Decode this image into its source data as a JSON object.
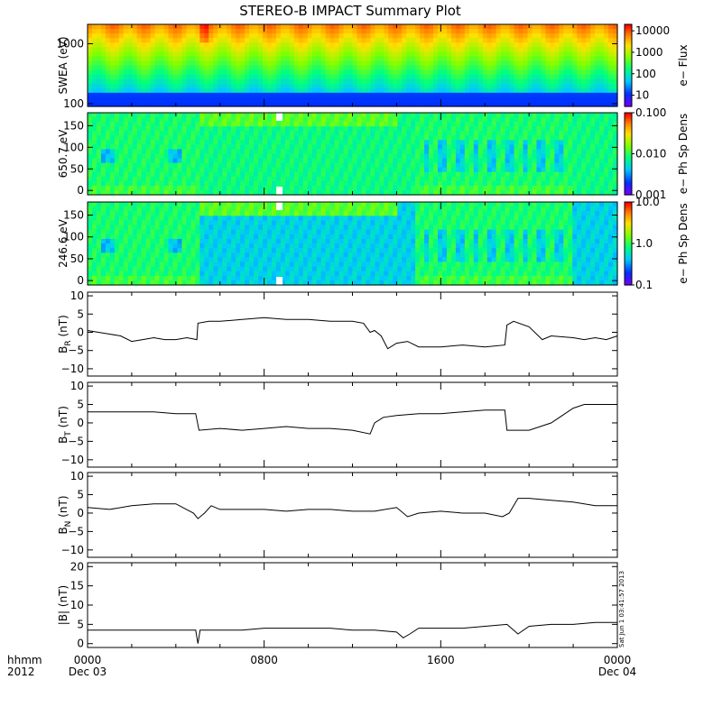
{
  "title": "STEREO-B IMPACT Summary Plot",
  "timestamp": "Sat Jun  1 03:41:57 2013",
  "x_axis": {
    "row1_label": "hhmm",
    "row2_label": "2012",
    "ticks": [
      {
        "hour": 0,
        "label": "0000",
        "sub": "Dec 03"
      },
      {
        "hour": 8,
        "label": "0800",
        "sub": ""
      },
      {
        "hour": 16,
        "label": "1600",
        "sub": ""
      },
      {
        "hour": 24,
        "label": "0000",
        "sub": "Dec 04"
      }
    ]
  },
  "colors": {
    "trace": "#000000",
    "colorbar": [
      "#7000ff",
      "#0030ff",
      "#00c8ff",
      "#00ff80",
      "#80ff00",
      "#ffe000",
      "#ff8000",
      "#ff0000"
    ]
  },
  "chart_data": [
    {
      "type": "heatmap",
      "panel": "swea",
      "ylabel": "SWEA (eV)",
      "yscale": "log",
      "ylim": [
        90,
        2100
      ],
      "yticks": [
        100,
        1000
      ],
      "ytick_labels": [
        "100",
        "1000"
      ],
      "colorbar": {
        "label": "e− Flux",
        "scale": "log",
        "range": [
          3,
          20000
        ],
        "ticks": [
          10,
          100,
          1000,
          10000
        ],
        "tick_labels": [
          "10",
          "100",
          "1000",
          "10000"
        ]
      }
    },
    {
      "type": "heatmap",
      "panel": "pad650",
      "ylabel": "650.7 eV",
      "yscale": "linear",
      "ylim": [
        -10,
        180
      ],
      "yticks": [
        0,
        50,
        100,
        150
      ],
      "ytick_labels": [
        "0",
        "50",
        "100",
        "150"
      ],
      "colorbar": {
        "label": "e− Ph Sp Dens",
        "scale": "log",
        "range": [
          0.001,
          0.1
        ],
        "ticks": [
          0.001,
          0.01,
          0.1
        ],
        "tick_labels": [
          "0.001",
          "0.010",
          "0.100"
        ]
      }
    },
    {
      "type": "heatmap",
      "panel": "pad246",
      "ylabel": "246.6 eV",
      "yscale": "linear",
      "ylim": [
        -10,
        180
      ],
      "yticks": [
        0,
        50,
        100,
        150
      ],
      "ytick_labels": [
        "0",
        "50",
        "100",
        "150"
      ],
      "colorbar": {
        "label": "e− Ph Sp Dens",
        "scale": "log",
        "range": [
          0.1,
          10
        ],
        "ticks": [
          0.1,
          1,
          10
        ],
        "tick_labels": [
          "0.1",
          "1.0",
          "10.0"
        ]
      }
    },
    {
      "type": "line",
      "panel": "br",
      "ylabel": "B_R (nT)",
      "ylim": [
        -12,
        11
      ],
      "yticks": [
        -10,
        -5,
        0,
        5,
        10
      ],
      "ytick_labels": [
        "−10",
        "−5",
        "0",
        "5",
        "10"
      ],
      "x": [
        0,
        0.5,
        1,
        1.5,
        2,
        2.5,
        3,
        3.5,
        4,
        4.5,
        4.95,
        5.0,
        5.5,
        6,
        7,
        8,
        9,
        10,
        11,
        12,
        12.5,
        12.8,
        13.0,
        13.3,
        13.6,
        14,
        14.5,
        15,
        15.5,
        16,
        17,
        18,
        18.9,
        19.0,
        19.3,
        20,
        20.6,
        21,
        22,
        22.5,
        23,
        23.5,
        24
      ],
      "y": [
        0.5,
        0,
        -0.5,
        -1,
        -2.5,
        -2,
        -1.5,
        -2,
        -2,
        -1.5,
        -2,
        2.5,
        3,
        3,
        3.5,
        4,
        3.5,
        3.5,
        3,
        3,
        2.5,
        0,
        0.5,
        -1,
        -4.5,
        -3,
        -2.5,
        -4,
        -4,
        -4,
        -3.5,
        -4,
        -3.5,
        2,
        3,
        1.5,
        -2,
        -1,
        -1.5,
        -2,
        -1.5,
        -2,
        -1
      ]
    },
    {
      "type": "line",
      "panel": "bt",
      "ylabel": "B_T (nT)",
      "ylim": [
        -12,
        11
      ],
      "yticks": [
        -10,
        -5,
        0,
        5,
        10
      ],
      "ytick_labels": [
        "−10",
        "−5",
        "0",
        "5",
        "10"
      ],
      "x": [
        0,
        1,
        2,
        3,
        4,
        4.9,
        5.05,
        6,
        7,
        8,
        9,
        10,
        11,
        12,
        12.8,
        13.0,
        13.4,
        14,
        15,
        16,
        17,
        18,
        18.9,
        19.0,
        19.5,
        20,
        21,
        21.5,
        22,
        22.5,
        23,
        24
      ],
      "y": [
        3,
        3,
        3,
        3,
        2.5,
        2.5,
        -2,
        -1.5,
        -2,
        -1.5,
        -1,
        -1.5,
        -1.5,
        -2,
        -3,
        0,
        1.5,
        2,
        2.5,
        2.5,
        3,
        3.5,
        3.5,
        -2,
        -2,
        -2,
        0,
        2,
        4,
        5,
        5,
        5
      ]
    },
    {
      "type": "line",
      "panel": "bn",
      "ylabel": "B_N (nT)",
      "ylim": [
        -12,
        11
      ],
      "yticks": [
        -10,
        -5,
        0,
        5,
        10
      ],
      "ytick_labels": [
        "−10",
        "−5",
        "0",
        "5",
        "10"
      ],
      "x": [
        0,
        1,
        2,
        3,
        4,
        4.8,
        5.0,
        5.3,
        5.6,
        6,
        7,
        8,
        9,
        10,
        11,
        12,
        13,
        14,
        14.5,
        15,
        16,
        17,
        18,
        18.8,
        19.1,
        19.5,
        20,
        21,
        22,
        23,
        24
      ],
      "y": [
        1.5,
        1,
        2,
        2.5,
        2.5,
        0,
        -1.5,
        0,
        2,
        1,
        1,
        1,
        0.5,
        1,
        1,
        0.5,
        0.5,
        1.5,
        -1,
        0,
        0.5,
        0,
        0,
        -1,
        0,
        4,
        4,
        3.5,
        3,
        2,
        2
      ]
    },
    {
      "type": "line",
      "panel": "bmag",
      "ylabel": "|B| (nT)",
      "ylim": [
        -1,
        21
      ],
      "yticks": [
        0,
        5,
        10,
        15,
        20
      ],
      "ytick_labels": [
        "0",
        "5",
        "10",
        "15",
        "20"
      ],
      "x": [
        0,
        1,
        2,
        3,
        4,
        4.9,
        5.0,
        5.1,
        6,
        7,
        8,
        9,
        10,
        11,
        12,
        13,
        14,
        14.3,
        14.6,
        15,
        16,
        17,
        18,
        19,
        19.5,
        20,
        21,
        22,
        23,
        24
      ],
      "y": [
        3.5,
        3.5,
        3.5,
        3.5,
        3.5,
        3.5,
        0,
        3.5,
        3.5,
        3.5,
        4,
        4,
        4,
        4,
        3.5,
        3.5,
        3,
        1.5,
        2.5,
        4,
        4,
        4,
        4.5,
        5,
        2.5,
        4.5,
        5,
        5,
        5.5,
        5.5
      ]
    }
  ]
}
